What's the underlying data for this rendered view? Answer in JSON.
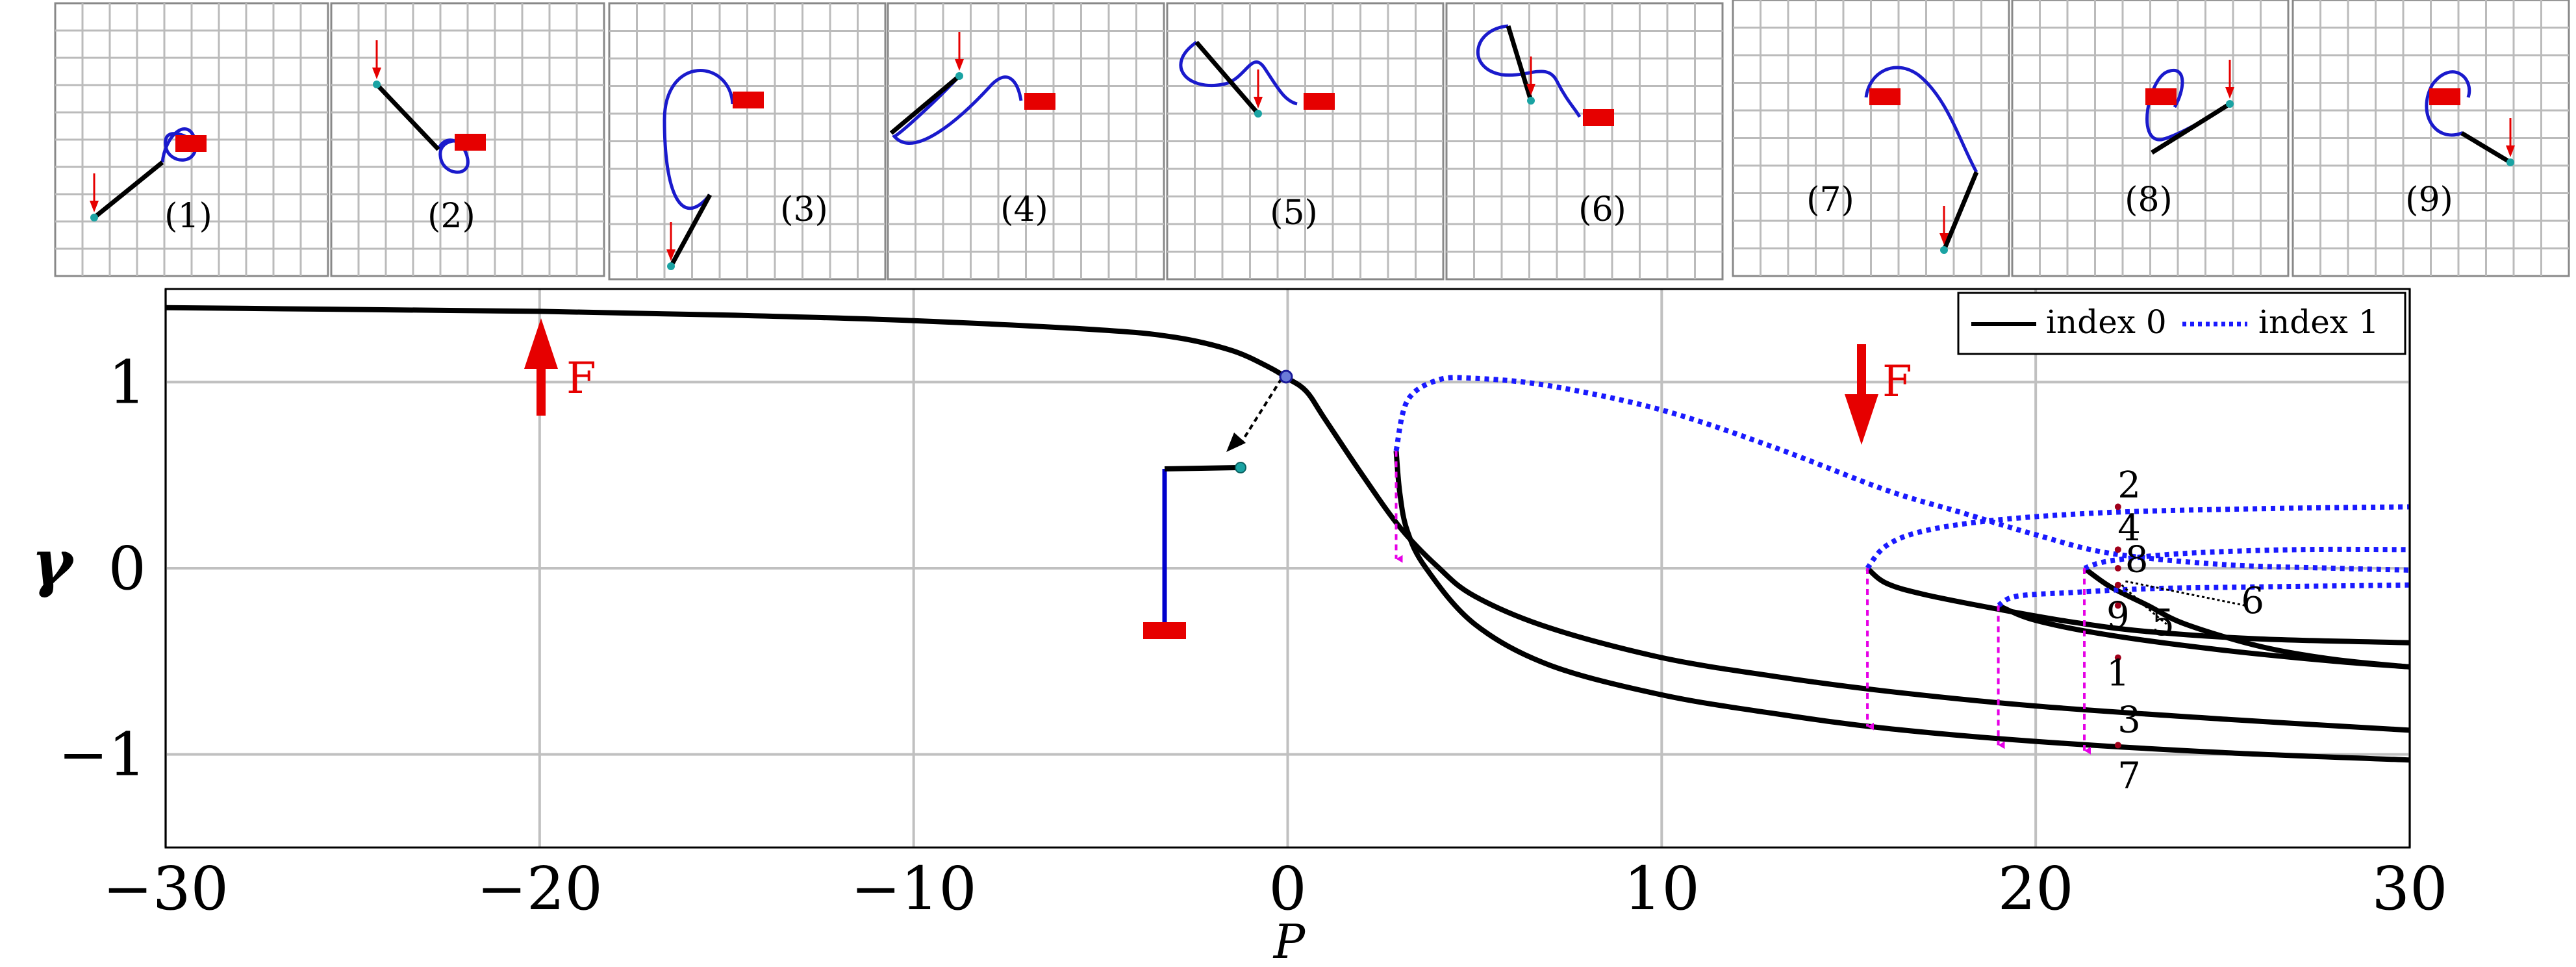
{
  "chart_data": {
    "type": "line",
    "xlabel": "P",
    "ylabel": "γ",
    "xlim": [
      -30,
      30
    ],
    "ylim": [
      -1.5,
      1.5
    ],
    "xticks": [
      -30,
      -20,
      -10,
      0,
      10,
      20,
      30
    ],
    "xtick_labels": [
      "−30",
      "−20",
      "−10",
      "0",
      "10",
      "20",
      "30"
    ],
    "yticks": [
      1,
      0,
      -1
    ],
    "ytick_labels": [
      "1",
      "0",
      "−1"
    ],
    "grid": true,
    "legend_position": "top-right",
    "series": [
      {
        "name": "index 0",
        "style": "solid",
        "color": "#000000",
        "branches": [
          [
            [
              -30,
              1.4
            ],
            [
              -25,
              1.39
            ],
            [
              -20,
              1.38
            ],
            [
              -15,
              1.36
            ],
            [
              -10,
              1.33
            ],
            [
              -5,
              1.28
            ],
            [
              -3,
              1.24
            ],
            [
              -1.5,
              1.17
            ],
            [
              -0.5,
              1.08
            ],
            [
              0,
              1.02
            ],
            [
              0.5,
              0.95
            ],
            [
              1,
              0.8
            ],
            [
              2,
              0.5
            ],
            [
              3,
              0.22
            ],
            [
              4,
              0.01
            ],
            [
              5,
              -0.15
            ],
            [
              7,
              -0.32
            ],
            [
              10,
              -0.48
            ],
            [
              13,
              -0.58
            ],
            [
              16,
              -0.66
            ],
            [
              20,
              -0.74
            ],
            [
              25,
              -0.81
            ],
            [
              30,
              -0.87
            ]
          ],
          [
            [
              2.9,
              0.63
            ],
            [
              3,
              0.4
            ],
            [
              3.2,
              0.2
            ],
            [
              3.7,
              0
            ],
            [
              5,
              -0.3
            ],
            [
              7,
              -0.52
            ],
            [
              10,
              -0.68
            ],
            [
              13,
              -0.78
            ],
            [
              16,
              -0.86
            ],
            [
              20,
              -0.93
            ],
            [
              25,
              -0.99
            ],
            [
              30,
              -1.03
            ]
          ],
          [
            [
              15.5,
              0
            ],
            [
              16,
              -0.08
            ],
            [
              17,
              -0.14
            ],
            [
              19,
              -0.22
            ],
            [
              21,
              -0.29
            ],
            [
              23,
              -0.34
            ],
            [
              26,
              -0.38
            ],
            [
              30,
              -0.4
            ]
          ],
          [
            [
              19,
              -0.2
            ],
            [
              20,
              -0.28
            ],
            [
              22,
              -0.36
            ],
            [
              25,
              -0.44
            ],
            [
              28,
              -0.5
            ],
            [
              30,
              -0.53
            ]
          ],
          [
            [
              21.3,
              0
            ],
            [
              22,
              -0.1
            ],
            [
              23,
              -0.2
            ],
            [
              24,
              -0.3
            ],
            [
              26,
              -0.42
            ],
            [
              28,
              -0.49
            ],
            [
              30,
              -0.53
            ]
          ]
        ]
      },
      {
        "name": "index 1",
        "style": "dotted",
        "color": "#1a1aff",
        "branches": [
          [
            [
              2.9,
              0.63
            ],
            [
              3.2,
              0.9
            ],
            [
              4,
              1.01
            ],
            [
              5,
              1.02
            ],
            [
              7,
              0.98
            ],
            [
              10,
              0.85
            ],
            [
              13,
              0.65
            ],
            [
              16,
              0.42
            ],
            [
              18,
              0.3
            ],
            [
              20,
              0.18
            ],
            [
              22,
              0.08
            ],
            [
              25,
              0.02
            ],
            [
              28,
              0
            ],
            [
              30,
              -0.01
            ]
          ],
          [
            [
              15.5,
              0
            ],
            [
              16,
              0.12
            ],
            [
              17,
              0.2
            ],
            [
              19,
              0.26
            ],
            [
              22,
              0.3
            ],
            [
              26,
              0.32
            ],
            [
              30,
              0.33
            ]
          ],
          [
            [
              19,
              -0.2
            ],
            [
              19.5,
              -0.15
            ],
            [
              21,
              -0.13
            ],
            [
              23,
              -0.11
            ],
            [
              26,
              -0.1
            ],
            [
              30,
              -0.09
            ]
          ],
          [
            [
              21.3,
              0
            ],
            [
              22,
              0.04
            ],
            [
              24,
              0.08
            ],
            [
              27,
              0.1
            ],
            [
              30,
              0.1
            ]
          ]
        ]
      }
    ],
    "annotations": {
      "force_labels": [
        "F",
        "F"
      ],
      "point_labels": [
        "2",
        "4",
        "8",
        "9",
        "1",
        "3",
        "7",
        "5",
        "6"
      ],
      "panel_labels": [
        "(1)",
        "(2)",
        "(3)",
        "(4)",
        "(5)",
        "(6)",
        "(7)",
        "(8)",
        "(9)"
      ]
    }
  },
  "legend": {
    "index0": "index 0",
    "index1": "index 1"
  },
  "colors": {
    "branch0": "#000000",
    "branch1": "#1a1aff",
    "jump": "#e600e6",
    "force": "#e60000",
    "clamp": "#e60000",
    "grid": "#c0c0c0",
    "marker": "#1aa3a3"
  }
}
